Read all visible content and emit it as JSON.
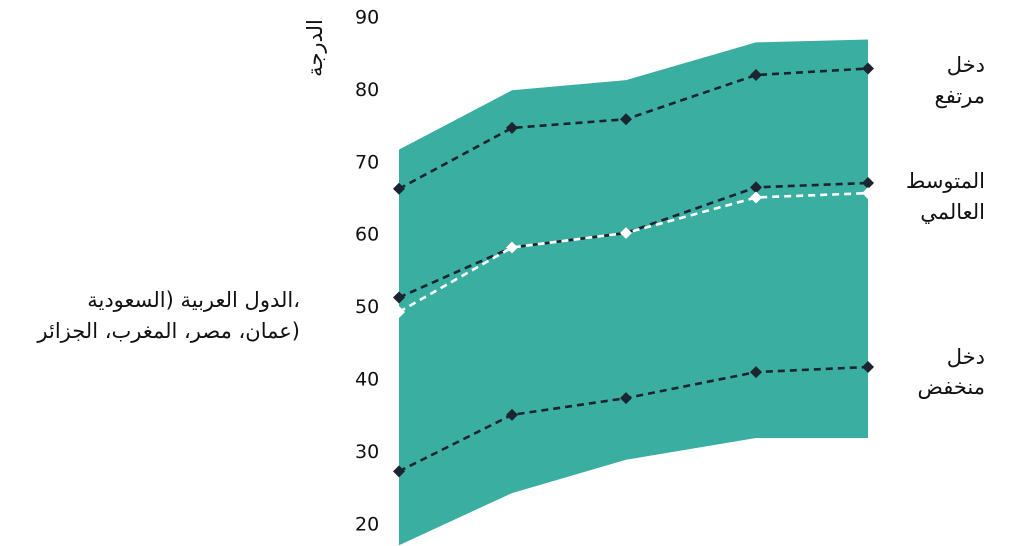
{
  "chart_data": {
    "type": "line",
    "ylabel": "الدرجة",
    "ylim": [
      20,
      90
    ],
    "yticks": [
      20,
      30,
      40,
      50,
      60,
      70,
      80,
      90
    ],
    "x": [
      1,
      2,
      3,
      4,
      5
    ],
    "band": {
      "lower": [
        17,
        24.2,
        28.8,
        31.8,
        31.8
      ],
      "upper": [
        71.6,
        79.8,
        81.2,
        86.4,
        86.8
      ],
      "color": "#3aaea0"
    },
    "series": [
      {
        "name": "دخل مرتفع",
        "values": [
          66.2,
          74.6,
          75.8,
          81.9,
          82.8
        ],
        "color": "#1b2430",
        "marker": "diamond"
      },
      {
        "name": "المتوسط العالمي",
        "values": [
          51.2,
          58.1,
          60.1,
          66.4,
          67.0
        ],
        "color": "#1b2430",
        "marker": "diamond"
      },
      {
        "name": "دخل منخفض",
        "values": [
          27.2,
          35.0,
          37.3,
          40.9,
          41.6
        ],
        "color": "#1b2430",
        "marker": "diamond"
      },
      {
        "name": "الدول العربية (السعودية، عمان، مصر، المغرب، الجزائر)",
        "values": [
          49.2,
          58.1,
          60.1,
          65.0,
          65.6
        ],
        "color": "#ffffff",
        "marker": "diamond"
      }
    ],
    "labels": {
      "high": [
        "دخل",
        "مرتفع"
      ],
      "world": [
        "المتوسط",
        "العالمي"
      ],
      "low": [
        "دخل",
        "منخفض"
      ],
      "arab": [
        "الدول العربية (السعودية،",
        "عمان، مصر، المغرب، الجزائر)"
      ]
    }
  }
}
